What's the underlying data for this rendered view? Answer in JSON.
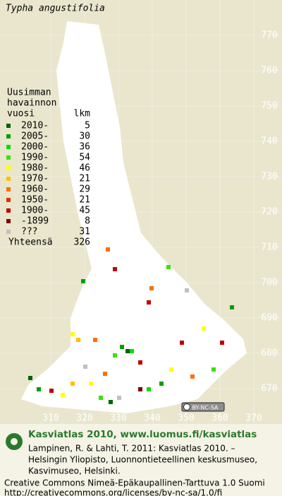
{
  "title": "Typha angustifolia",
  "legend": {
    "heading": [
      "Uusimman",
      "havainnon",
      "vuosi"
    ],
    "count_heading": "lkm",
    "items": [
      {
        "label": "2010-",
        "count": 5,
        "color": "#006400"
      },
      {
        "label": "2005-",
        "count": 30,
        "color": "#00a000"
      },
      {
        "label": "2000-",
        "count": 36,
        "color": "#00e000"
      },
      {
        "label": "1990-",
        "count": 54,
        "color": "#40e000"
      },
      {
        "label": "1980-",
        "count": 46,
        "color": "#ffff00"
      },
      {
        "label": "1970-",
        "count": 21,
        "color": "#ffc000"
      },
      {
        "label": "1960-",
        "count": 29,
        "color": "#ff7000"
      },
      {
        "label": "1950-",
        "count": 21,
        "color": "#e03000"
      },
      {
        "label": "1900-",
        "count": 45,
        "color": "#c00000"
      },
      {
        "label": "-1899",
        "count": 8,
        "color": "#800000"
      },
      {
        "label": "???",
        "count": 31,
        "color": "#c0c0c0"
      }
    ],
    "total_label": "Yhteensä",
    "total": 326
  },
  "grid": {
    "north": [
      770,
      760,
      750,
      740,
      730,
      720,
      710,
      700,
      690,
      680,
      670
    ],
    "east": [
      310,
      320,
      330,
      340,
      350,
      360,
      370
    ]
  },
  "license_badge": "BY-NC-SA",
  "footer": {
    "brand": "Kasviatlas 2010, www.luomus.fi/kasviatlas",
    "citation": [
      "Lampinen, R. & Lahti, T. 2011: Kasviatlas 2010. –",
      "Helsingin Yliopisto, Luonnontieteellinen keskusmuseo,",
      "Kasvimuseo, Helsinki."
    ],
    "license": "Creative Commons Nimeä-Epäkaupallinen-Tarttuva 1.0 Suomi",
    "license_url": "http://creativecommons.org/licenses/by-nc-sa/1.0/fi"
  }
}
